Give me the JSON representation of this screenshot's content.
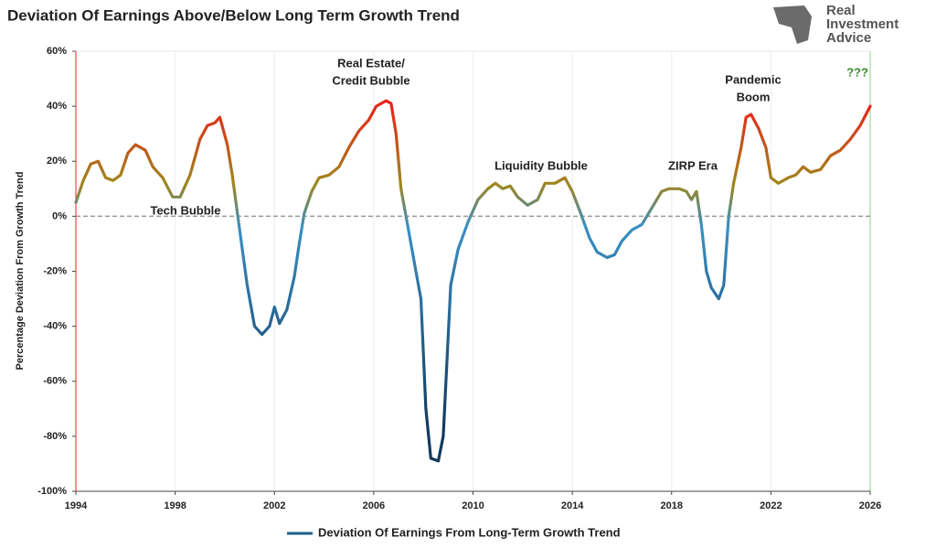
{
  "chart_data": {
    "type": "line",
    "title": "Deviation Of Earnings Above/Below Long Term Growth Trend",
    "ylabel": "Percentage Deviation From Growth Trend",
    "logo": [
      "Real",
      "Investment",
      "Advice"
    ],
    "xlim": [
      1994,
      2026
    ],
    "xticks": [
      1994,
      1998,
      2002,
      2006,
      2010,
      2014,
      2018,
      2022,
      2026
    ],
    "ylim": [
      -100,
      60
    ],
    "yticks": [
      {
        "value": -100,
        "label": "-100%"
      },
      {
        "value": -80,
        "label": "-80%"
      },
      {
        "value": -60,
        "label": "-60%"
      },
      {
        "value": -40,
        "label": "-40%"
      },
      {
        "value": -20,
        "label": "-20%"
      },
      {
        "value": 0,
        "label": "0%"
      },
      {
        "value": 20,
        "label": "20%"
      },
      {
        "value": 40,
        "label": "40%"
      },
      {
        "value": 60,
        "label": "60%"
      }
    ],
    "zero_line": true,
    "line_colors": [
      "#e8231a",
      "#a0861c",
      "#3a8fc4",
      "#123a5e"
    ],
    "series": [
      {
        "name": "Deviation Of Earnings From Long-Term Growth Trend",
        "color": "#1f5f8b",
        "x": [
          1994.0,
          1994.3,
          1994.6,
          1994.9,
          1995.2,
          1995.5,
          1995.8,
          1996.1,
          1996.4,
          1996.8,
          1997.1,
          1997.5,
          1997.9,
          1998.2,
          1998.6,
          1999.0,
          1999.3,
          1999.6,
          1999.8,
          2000.1,
          2000.3,
          2000.6,
          2000.9,
          2001.2,
          2001.5,
          2001.8,
          2002.0,
          2002.2,
          2002.5,
          2002.8,
          2003.0,
          2003.2,
          2003.5,
          2003.8,
          2004.2,
          2004.6,
          2005.0,
          2005.4,
          2005.8,
          2006.1,
          2006.5,
          2006.7,
          2006.9,
          2007.1,
          2007.4,
          2007.7,
          2007.9,
          2008.1,
          2008.3,
          2008.6,
          2008.8,
          2009.1,
          2009.4,
          2009.8,
          2010.2,
          2010.6,
          2010.9,
          2011.2,
          2011.5,
          2011.8,
          2012.2,
          2012.6,
          2012.9,
          2013.3,
          2013.7,
          2014.0,
          2014.3,
          2014.7,
          2015.0,
          2015.4,
          2015.7,
          2016.0,
          2016.4,
          2016.8,
          2017.2,
          2017.6,
          2017.9,
          2018.3,
          2018.6,
          2018.8,
          2019.0,
          2019.2,
          2019.4,
          2019.6,
          2019.9,
          2020.1,
          2020.3,
          2020.5,
          2020.8,
          2021.0,
          2021.2,
          2021.5,
          2021.8,
          2022.0,
          2022.3,
          2022.7,
          2023.0,
          2023.3,
          2023.6,
          2024.0,
          2024.4,
          2024.8,
          2025.2,
          2025.6,
          2026.0
        ],
        "values": [
          5,
          13,
          19,
          20,
          14,
          13,
          15,
          23,
          26,
          24,
          18,
          14,
          7,
          7,
          15,
          28,
          33,
          34,
          36,
          26,
          15,
          -5,
          -25,
          -40,
          -43,
          -40,
          -33,
          -39,
          -34,
          -22,
          -10,
          1,
          9,
          14,
          15,
          18,
          25,
          31,
          35,
          40,
          42,
          41,
          30,
          10,
          -5,
          -20,
          -30,
          -70,
          -88,
          -89,
          -80,
          -25,
          -12,
          -2,
          6,
          10,
          12,
          10,
          11,
          7,
          4,
          6,
          12,
          12,
          14,
          9,
          2,
          -8,
          -13,
          -15,
          -14,
          -9,
          -5,
          -3,
          3,
          9,
          10,
          10,
          9,
          6,
          9,
          -3,
          -20,
          -26,
          -30,
          -25,
          0,
          12,
          25,
          36,
          37,
          32,
          25,
          14,
          12,
          14,
          15,
          18,
          16,
          17,
          22,
          24,
          28,
          33,
          40
        ]
      }
    ],
    "annotations": [
      {
        "lines": [
          "Tech Bubble"
        ],
        "color": "#222222"
      },
      {
        "lines": [
          "Real Estate/",
          "Credit Bubble"
        ],
        "color": "#222222"
      },
      {
        "lines": [
          "Liquidity Bubble"
        ],
        "color": "#222222"
      },
      {
        "lines": [
          "ZIRP Era"
        ],
        "color": "#222222"
      },
      {
        "lines": [
          "Pandemic",
          "Boom"
        ],
        "color": "#222222"
      },
      {
        "lines": [
          "???"
        ],
        "color": "#3c8a2e"
      }
    ]
  }
}
